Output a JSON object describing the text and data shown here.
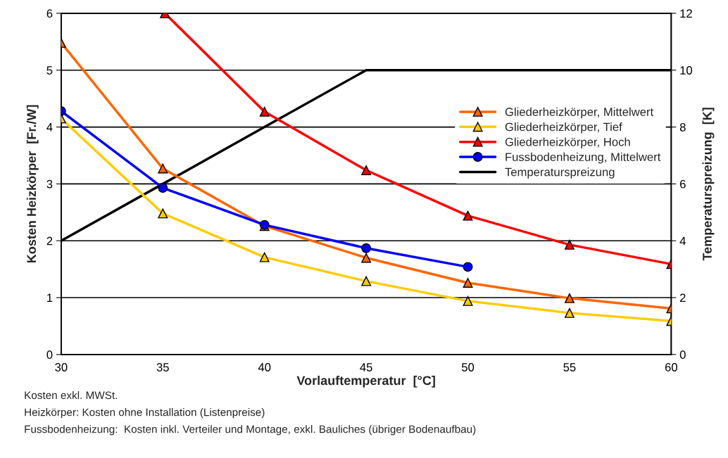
{
  "chart_data": {
    "type": "line",
    "xlabel": "Vorlauftemperatur  [°C]",
    "ylabel": "Kosten Heizkörper  [Fr./W]",
    "y2label": "Temperaturspreizung  [K]",
    "x": [
      30,
      35,
      40,
      45,
      50,
      55,
      60
    ],
    "series": [
      {
        "name": "Gliederheizkörper, Mittelwert",
        "color": "#ff6600",
        "marker": "triangle",
        "values": [
          5.48,
          3.27,
          2.26,
          1.7,
          1.26,
          0.99,
          0.81
        ]
      },
      {
        "name": "Gliederheizkörper, Tief",
        "color": "#ffcc00",
        "marker": "triangle",
        "values": [
          4.15,
          2.48,
          1.71,
          1.29,
          0.94,
          0.73,
          0.59
        ]
      },
      {
        "name": "Gliederheizkörper, Hoch",
        "color": "#ff0000",
        "marker": "triangle",
        "x": [
          35.1,
          40,
          45,
          50,
          55,
          60
        ],
        "values": [
          6,
          4.27,
          3.24,
          2.44,
          1.93,
          1.59
        ]
      },
      {
        "name": "Fussbodenheizung, Mittelwert",
        "color": "#0000ff",
        "marker": "circle",
        "values": [
          4.28,
          2.93,
          2.28,
          1.87,
          1.54,
          null,
          null
        ]
      },
      {
        "name": "Temperaturspreizung",
        "color": "#000000",
        "marker": "none",
        "axis": "y2",
        "values": [
          4,
          6,
          8,
          10,
          10,
          10,
          10
        ]
      }
    ],
    "xlim": [
      30,
      60
    ],
    "xticks": [
      30,
      35,
      40,
      45,
      50,
      55,
      60
    ],
    "ylim": [
      0,
      6
    ],
    "yticks": [
      0,
      1,
      2,
      3,
      4,
      5,
      6
    ],
    "y2lim": [
      0,
      12
    ],
    "y2ticks": [
      0,
      2,
      4,
      6,
      8,
      10,
      12
    ],
    "grid": "y",
    "legend": "right",
    "annotations": [
      "Kosten exkl. MWSt.",
      "Heizkörper: Kosten ohne Installation (Listenpreise)",
      "Fussbodenheizung:  Kosten inkl. Verteiler und Montage, exkl. Bauliches (übriger Bodenaufbau)"
    ]
  }
}
